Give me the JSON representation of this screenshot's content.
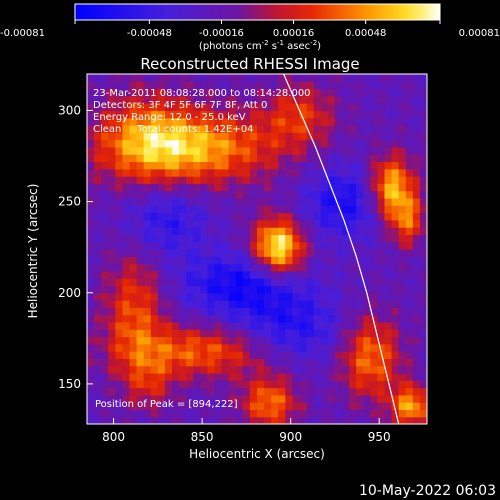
{
  "chart_data": {
    "type": "heatmap",
    "title": "Reconstructed RHESSI Image",
    "xlabel": "Heliocentric X (arcsec)",
    "ylabel": "Heliocentric Y (arcsec)",
    "xlim": [
      785,
      977
    ],
    "ylim": [
      128,
      320
    ],
    "x_ticks": [
      800,
      850,
      900,
      950
    ],
    "y_ticks": [
      150,
      200,
      250,
      300
    ],
    "colorbar": {
      "ticks": [
        "-0.00081",
        "-0.00048",
        "-0.00016",
        "0.00016",
        "0.00048",
        "0.00081"
      ],
      "range": [
        -0.00081,
        0.00081
      ],
      "unit_main": "(photons cm",
      "unit_sup1": "-2",
      "unit_mid": " s",
      "unit_sup2": "-1",
      "unit_end": " asec",
      "unit_sup3": "-2",
      "unit_close": ")"
    },
    "annotations": [
      "23-Mar-2011 08:08:28.000 to 08:14:28.000",
      "Detectors: 3F 4F 5F 6F 7F 8F, Att 0",
      "Energy Range: 12.0 - 25.0 keV",
      "Clean     Total counts: 1.42E+04"
    ],
    "peak_label": "Position of Peak = [894,222]",
    "peak": [
      894,
      222
    ],
    "limb_points": [
      [
        896,
        320
      ],
      [
        905,
        300
      ],
      [
        914,
        280
      ],
      [
        922,
        260
      ],
      [
        930,
        240
      ],
      [
        937,
        220
      ],
      [
        943,
        200
      ],
      [
        948,
        180
      ],
      [
        953,
        160
      ],
      [
        958,
        140
      ],
      [
        961,
        128
      ]
    ],
    "features": [
      {
        "x": 893,
        "y": 225,
        "amp": 1.0,
        "sx": 10,
        "sy": 11
      },
      {
        "x": 843,
        "y": 280,
        "amp": 0.75,
        "sx": 34,
        "sy": 14
      },
      {
        "x": 818,
        "y": 288,
        "amp": 0.35,
        "sx": 18,
        "sy": 18
      },
      {
        "x": 905,
        "y": 298,
        "amp": 0.4,
        "sx": 14,
        "sy": 12
      },
      {
        "x": 957,
        "y": 258,
        "amp": 0.8,
        "sx": 9,
        "sy": 12
      },
      {
        "x": 966,
        "y": 240,
        "amp": 0.5,
        "sx": 7,
        "sy": 10
      },
      {
        "x": 850,
        "y": 168,
        "amp": 0.55,
        "sx": 30,
        "sy": 10
      },
      {
        "x": 812,
        "y": 190,
        "amp": 0.5,
        "sx": 12,
        "sy": 22
      },
      {
        "x": 888,
        "y": 140,
        "amp": 0.6,
        "sx": 11,
        "sy": 10
      },
      {
        "x": 945,
        "y": 165,
        "amp": 0.6,
        "sx": 12,
        "sy": 16
      },
      {
        "x": 968,
        "y": 138,
        "amp": 0.7,
        "sx": 8,
        "sy": 8
      },
      {
        "x": 930,
        "y": 250,
        "amp": -0.45,
        "sx": 16,
        "sy": 14
      },
      {
        "x": 872,
        "y": 205,
        "amp": -0.5,
        "sx": 24,
        "sy": 12
      },
      {
        "x": 900,
        "y": 180,
        "amp": -0.4,
        "sx": 22,
        "sy": 14
      },
      {
        "x": 830,
        "y": 240,
        "amp": -0.35,
        "sx": 16,
        "sy": 14
      },
      {
        "x": 820,
        "y": 150,
        "amp": 0.3,
        "sx": 10,
        "sy": 10
      }
    ]
  },
  "timestamp": "10-May-2022 06:03"
}
